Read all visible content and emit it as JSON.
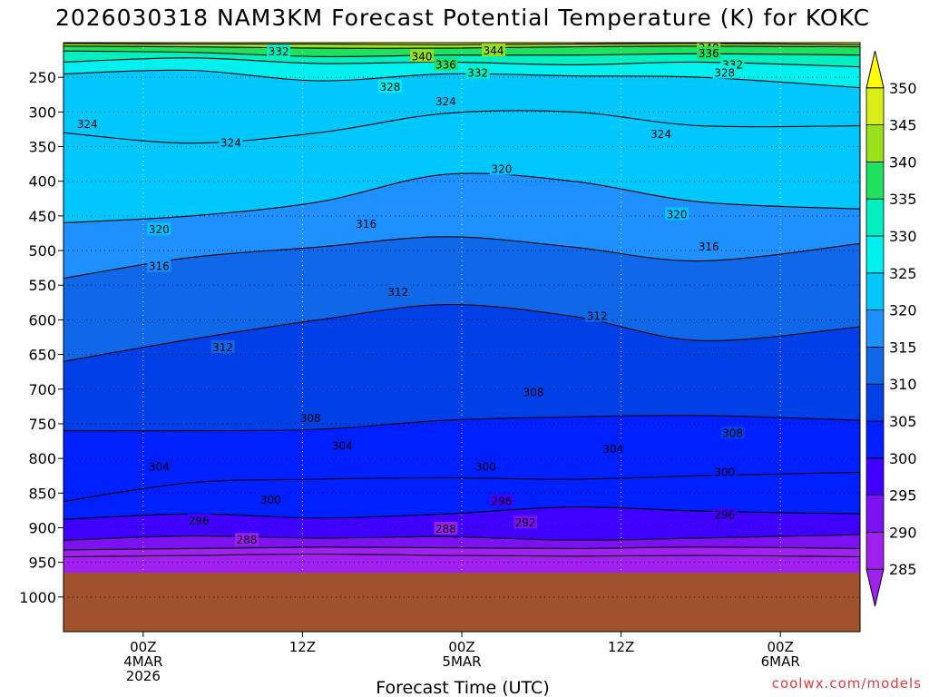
{
  "chart_data": {
    "type": "contour",
    "title": "2026030318 NAM3KM Forecast Potential Temperature (K) for KOKC",
    "xlabel": "Forecast Time (UTC)",
    "ylabel": "",
    "credit": "coolwx.com/models",
    "x_range_hours": [
      -5,
      45
    ],
    "y_range_hpa": [
      200,
      1050
    ],
    "y_ticks": [
      250,
      300,
      350,
      400,
      450,
      500,
      550,
      600,
      650,
      700,
      750,
      800,
      850,
      900,
      950,
      1000
    ],
    "y_tick_labels": [
      "250",
      "300",
      "350",
      "400",
      "450",
      "500",
      "550",
      "600",
      "650",
      "700",
      "750",
      "800",
      "850",
      "900",
      "950",
      "1000"
    ],
    "x_ticks": [
      {
        "hour": 0,
        "lines": [
          "00Z",
          "4MAR",
          "2026"
        ]
      },
      {
        "hour": 10,
        "lines": [
          "12Z"
        ]
      },
      {
        "hour": 20,
        "lines": [
          "00Z",
          "5MAR"
        ]
      },
      {
        "hour": 30,
        "lines": [
          "12Z"
        ]
      },
      {
        "hour": 40,
        "lines": [
          "00Z",
          "6MAR"
        ]
      }
    ],
    "colorbar": {
      "levels": [
        285,
        290,
        295,
        300,
        305,
        310,
        315,
        320,
        325,
        330,
        335,
        340,
        345,
        350
      ],
      "labels": [
        "285",
        "290",
        "295",
        "300",
        "305",
        "310",
        "315",
        "320",
        "325",
        "330",
        "335",
        "340",
        "345",
        "350"
      ],
      "colors": [
        "#a020f0",
        "#7c12f2",
        "#4000ff",
        "#0020ff",
        "#0040e6",
        "#1068e8",
        "#1e90ff",
        "#00c8ff",
        "#00f0f0",
        "#00f0c0",
        "#20e060",
        "#9ae01c",
        "#d8ee14",
        "#ffff00"
      ]
    },
    "ground_color": "#a0522d",
    "ground_level_hpa": 965,
    "isentropes": [
      {
        "theta": 288,
        "pressure": [
          942,
          940,
          938,
          940,
          941,
          940,
          942
        ]
      },
      {
        "theta": 292,
        "pressure": [
          932,
          930,
          928,
          929,
          930,
          928,
          930
        ]
      },
      {
        "theta": 296,
        "pressure": [
          918,
          912,
          915,
          913,
          918,
          915,
          910
        ]
      },
      {
        "theta": 300,
        "pressure": [
          888,
          880,
          886,
          880,
          870,
          876,
          880
        ]
      },
      {
        "theta": 304,
        "pressure": [
          862,
          835,
          830,
          828,
          830,
          825,
          820
        ]
      },
      {
        "theta": 308,
        "pressure": [
          760,
          760,
          758,
          745,
          740,
          738,
          745
        ]
      },
      {
        "theta": 312,
        "pressure": [
          660,
          628,
          600,
          578,
          595,
          630,
          610
        ]
      },
      {
        "theta": 316,
        "pressure": [
          540,
          510,
          495,
          480,
          495,
          515,
          490
        ]
      },
      {
        "theta": 320,
        "pressure": [
          460,
          450,
          430,
          390,
          400,
          430,
          440
        ]
      },
      {
        "theta": 324,
        "pressure": [
          330,
          345,
          330,
          302,
          300,
          320,
          320
        ]
      },
      {
        "theta": 328,
        "pressure": [
          245,
          240,
          255,
          245,
          248,
          250,
          265
        ]
      },
      {
        "theta": 332,
        "pressure": [
          228,
          222,
          230,
          228,
          232,
          228,
          235
        ]
      },
      {
        "theta": 336,
        "pressure": [
          212,
          214,
          220,
          218,
          218,
          216,
          218
        ]
      },
      {
        "theta": 340,
        "pressure": [
          205,
          206,
          208,
          208,
          206,
          205,
          206
        ]
      },
      {
        "theta": 344,
        "pressure": [
          201,
          202,
          202,
          203,
          202,
          201,
          203
        ]
      }
    ],
    "isentrope_hours": [
      -5,
      3,
      11,
      19,
      27,
      35,
      45
    ],
    "contour_labels": [
      {
        "theta": 332,
        "hour": 8.5,
        "pressure": 213
      },
      {
        "theta": 340,
        "hour": 17.5,
        "pressure": 220
      },
      {
        "theta": 344,
        "hour": 22,
        "pressure": 212
      },
      {
        "theta": 340,
        "hour": 35.5,
        "pressure": 208
      },
      {
        "theta": 336,
        "hour": 35.5,
        "pressure": 216
      },
      {
        "theta": 336,
        "hour": 19,
        "pressure": 232
      },
      {
        "theta": 332,
        "hour": 37,
        "pressure": 232
      },
      {
        "theta": 332,
        "hour": 21,
        "pressure": 244
      },
      {
        "theta": 328,
        "hour": 36.5,
        "pressure": 244
      },
      {
        "theta": 328,
        "hour": 15.5,
        "pressure": 264
      },
      {
        "theta": 324,
        "hour": 19,
        "pressure": 285
      },
      {
        "theta": 324,
        "hour": -3.5,
        "pressure": 318
      },
      {
        "theta": 324,
        "hour": 5.5,
        "pressure": 345
      },
      {
        "theta": 324,
        "hour": 32.5,
        "pressure": 332
      },
      {
        "theta": 320,
        "hour": 22.5,
        "pressure": 383
      },
      {
        "theta": 320,
        "hour": 33.5,
        "pressure": 448
      },
      {
        "theta": 320,
        "hour": 1,
        "pressure": 470
      },
      {
        "theta": 316,
        "hour": 14,
        "pressure": 462
      },
      {
        "theta": 316,
        "hour": 1,
        "pressure": 523
      },
      {
        "theta": 316,
        "hour": 35.5,
        "pressure": 495
      },
      {
        "theta": 312,
        "hour": 16,
        "pressure": 560
      },
      {
        "theta": 312,
        "hour": 28.5,
        "pressure": 595
      },
      {
        "theta": 312,
        "hour": 5,
        "pressure": 640
      },
      {
        "theta": 308,
        "hour": 24.5,
        "pressure": 705
      },
      {
        "theta": 308,
        "hour": 10.5,
        "pressure": 742
      },
      {
        "theta": 308,
        "hour": 37,
        "pressure": 764
      },
      {
        "theta": 304,
        "hour": 12.5,
        "pressure": 782
      },
      {
        "theta": 304,
        "hour": 29.5,
        "pressure": 787
      },
      {
        "theta": 304,
        "hour": 1,
        "pressure": 812
      },
      {
        "theta": 300,
        "hour": 21.5,
        "pressure": 812
      },
      {
        "theta": 300,
        "hour": 36.5,
        "pressure": 820
      },
      {
        "theta": 300,
        "hour": 8,
        "pressure": 860
      },
      {
        "theta": 296,
        "hour": 22.5,
        "pressure": 862
      },
      {
        "theta": 296,
        "hour": 36.5,
        "pressure": 882
      },
      {
        "theta": 296,
        "hour": 3.5,
        "pressure": 890
      },
      {
        "theta": 292,
        "hour": 24,
        "pressure": 893
      },
      {
        "theta": 288,
        "hour": 6.5,
        "pressure": 918
      },
      {
        "theta": 288,
        "hour": 19,
        "pressure": 902
      }
    ]
  }
}
